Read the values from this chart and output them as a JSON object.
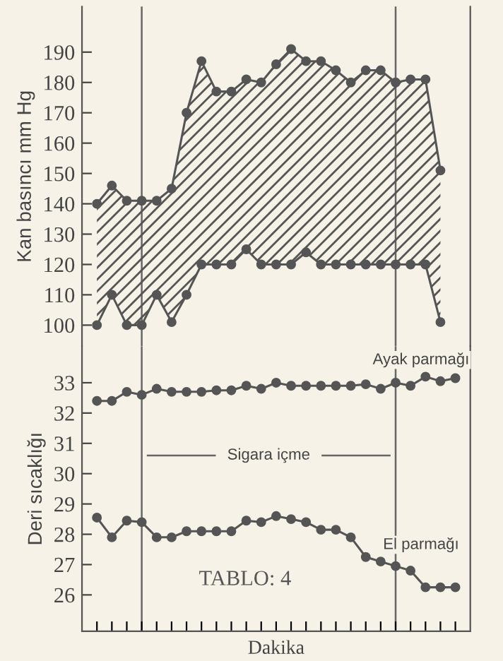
{
  "chart_data": [
    {
      "type": "line",
      "ylabel": "Kan basıncı mm Hg",
      "categories": [
        null,
        null,
        null,
        null,
        null,
        null,
        null,
        null,
        null,
        null,
        null,
        null,
        null,
        null,
        null,
        null,
        null,
        null,
        null,
        null,
        null,
        null,
        null,
        null
      ],
      "ylim": [
        93,
        205
      ],
      "yticks": [
        100,
        110,
        120,
        130,
        140,
        150,
        160,
        170,
        180,
        190
      ],
      "tick_labels": "y",
      "grid": false,
      "legend": false,
      "marker": "circle",
      "line_style": "solid",
      "series": [
        {
          "color": "#555555",
          "values": [
            140,
            146,
            141,
            141,
            141,
            145,
            170,
            187,
            177,
            177,
            181,
            180,
            186,
            191,
            187,
            187,
            184,
            180,
            184,
            184,
            180,
            181,
            181,
            151
          ],
          "upper": [
            140,
            146,
            141,
            141,
            141,
            145,
            170,
            187,
            177,
            177,
            181,
            180,
            186,
            191,
            187,
            187,
            184,
            180,
            184,
            184,
            180,
            181,
            181,
            151
          ],
          "lower": [
            100,
            110,
            100,
            100,
            110,
            101,
            110,
            120,
            120,
            120,
            125,
            120,
            120,
            120,
            124,
            120,
            120,
            120,
            120,
            120,
            120,
            120,
            120,
            101
          ]
        },
        {
          "color": "#555555",
          "values": [
            100,
            110,
            100,
            100,
            110,
            101,
            110,
            120,
            120,
            120,
            125,
            120,
            120,
            120,
            124,
            120,
            120,
            120,
            120,
            120,
            120,
            120,
            120,
            101
          ]
        }
      ]
    },
    {
      "type": "line",
      "ylabel": "Deri sıcaklığı",
      "xlabel": "Dakika",
      "categories": [
        null,
        null,
        null,
        null,
        null,
        null,
        null,
        null,
        null,
        null,
        null,
        null,
        null,
        null,
        null,
        null,
        null,
        null,
        null,
        null,
        null,
        null,
        null,
        null,
        null
      ],
      "ylim": [
        24.8,
        34.2
      ],
      "yticks": [
        26,
        27,
        28,
        29,
        30,
        31,
        32,
        33
      ],
      "grid": false,
      "legend": false,
      "marker": "circle",
      "line_style": "solid",
      "annotations": [
        "Sigara içme",
        "TABLO: 4"
      ],
      "series": [
        {
          "name": "Ayak parmağı",
          "color": "#555555",
          "values": [
            32.4,
            32.4,
            32.7,
            32.6,
            32.8,
            32.7,
            32.7,
            32.7,
            32.75,
            32.75,
            32.9,
            32.8,
            33.0,
            32.9,
            32.9,
            32.9,
            32.9,
            32.9,
            32.95,
            32.8,
            33.0,
            32.9,
            33.2,
            33.05,
            33.15
          ]
        },
        {
          "name": "El parmağı",
          "color": "#555555",
          "values": [
            28.55,
            27.9,
            28.45,
            28.4,
            27.9,
            27.9,
            28.1,
            28.1,
            28.1,
            28.1,
            28.45,
            28.4,
            28.6,
            28.5,
            28.4,
            28.15,
            28.15,
            27.9,
            27.25,
            27.1,
            26.95,
            26.8,
            26.25,
            26.25,
            26.25
          ]
        }
      ]
    }
  ]
}
